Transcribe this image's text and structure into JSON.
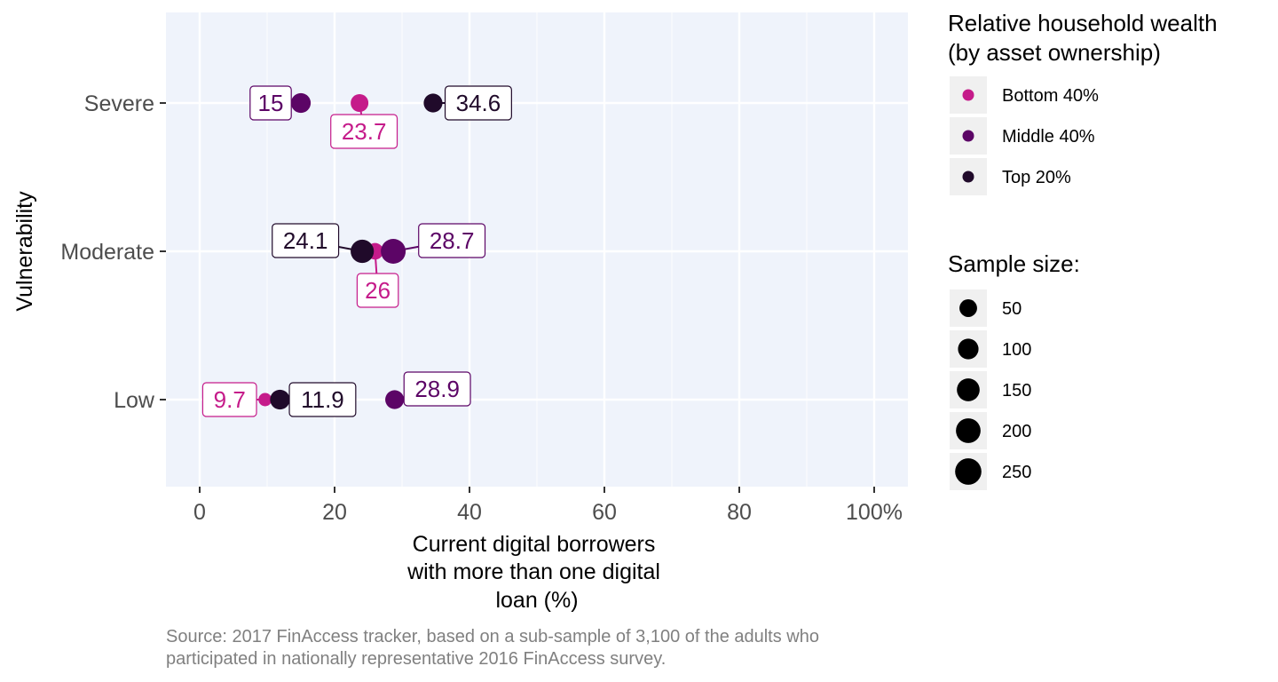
{
  "chart_data": {
    "type": "scatter",
    "x_axis": {
      "title_lines": [
        "Current digital borrowers",
        "with more than one digital",
        "loan (%)"
      ],
      "ticks": [
        0,
        20,
        40,
        60,
        80,
        100
      ],
      "tick_labels": [
        "0",
        "20",
        "40",
        "60",
        "80",
        "100%"
      ],
      "range": [
        -5,
        105
      ]
    },
    "y_axis": {
      "title": "Vulnerability",
      "categories": [
        "Severe",
        "Moderate",
        "Low"
      ]
    },
    "grid": true,
    "series": [
      {
        "name": "Bottom 40%",
        "color": "#C51B8A",
        "points": [
          {
            "category": "Severe",
            "x": 23.7,
            "label": "23.7",
            "sample_size": 80
          },
          {
            "category": "Moderate",
            "x": 26,
            "label": "26",
            "sample_size": 60
          },
          {
            "category": "Low",
            "x": 9.7,
            "label": "9.7",
            "sample_size": 20
          }
        ]
      },
      {
        "name": "Middle 40%",
        "color": "#5C0566",
        "points": [
          {
            "category": "Severe",
            "x": 15,
            "label": "15",
            "sample_size": 120
          },
          {
            "category": "Moderate",
            "x": 28.7,
            "label": "28.7",
            "sample_size": 260
          },
          {
            "category": "Low",
            "x": 28.9,
            "label": "28.9",
            "sample_size": 100
          }
        ]
      },
      {
        "name": "Top 20%",
        "color": "#200A2A",
        "points": [
          {
            "category": "Severe",
            "x": 34.6,
            "label": "34.6",
            "sample_size": 100
          },
          {
            "category": "Moderate",
            "x": 24.1,
            "label": "24.1",
            "sample_size": 210
          },
          {
            "category": "Low",
            "x": 11.9,
            "label": "11.9",
            "sample_size": 120
          }
        ]
      }
    ],
    "legend_color": {
      "title_lines": [
        "Relative household wealth",
        "(by asset ownership)"
      ],
      "position": "right"
    },
    "legend_size": {
      "title": "Sample size:",
      "values": [
        50,
        100,
        150,
        200,
        250
      ],
      "labels": [
        "50",
        "100",
        "150",
        "200",
        "250"
      ]
    },
    "caption_lines": [
      "Source: 2017 FinAccess tracker, based on a sub-sample of 3,100 of the adults who",
      "participated in nationally representative 2016 FinAccess survey."
    ],
    "colors": {
      "panel_background": "#EFF3FB",
      "grid": "#ffffff"
    }
  }
}
